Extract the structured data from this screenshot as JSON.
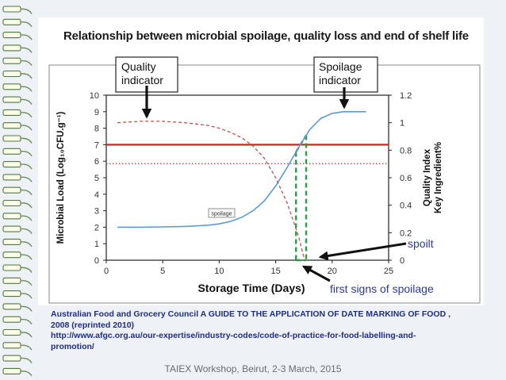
{
  "slide": {
    "footer": "TAIEX Workshop, Beirut, 2-3 March, 2015",
    "citation": {
      "line1": "Australian Food and Grocery Council A GUIDE TO THE APPLICATION OF DATE MARKING OF FOOD ,",
      "line2": "2008 (reprinted 2010)",
      "line3": "http://www.afgc.org.au/our-expertise/industry-codes/code-of-practice-for-food-labelling-and-",
      "line4": "promotion/"
    }
  },
  "chart_data": {
    "type": "line",
    "title": "Relationship between microbial spoilage, quality loss and end of shelf life",
    "xlabel": "Storage Time (Days)",
    "ylabel_left": "Microbial Load (Log₁₀CFU.g⁻¹)",
    "ylabel_right_1": "Quality Index",
    "ylabel_right_2": "Key Ingredient%",
    "xlim": [
      0,
      25
    ],
    "ylim_left": [
      0,
      10
    ],
    "ylim_right": [
      0,
      1.2
    ],
    "x_ticks": [
      "0",
      "5",
      "10",
      "15",
      "20",
      "25"
    ],
    "y_left_ticks": [
      "0",
      "1",
      "2",
      "3",
      "4",
      "5",
      "6",
      "7",
      "8",
      "9",
      "10"
    ],
    "y_right_ticks": [
      "0",
      "0.2",
      "0.4",
      "0.6",
      "0.8",
      "1",
      "1.2"
    ],
    "grid": false,
    "series": [
      {
        "name": "spoilage",
        "axis": "left",
        "style": "solid",
        "color": "#5a9bd5",
        "x": [
          1,
          3,
          5,
          7,
          9,
          10,
          11,
          12,
          13,
          14,
          15,
          16,
          17,
          18,
          19,
          20,
          21,
          22,
          23
        ],
        "y": [
          2.0,
          2.0,
          2.02,
          2.05,
          2.12,
          2.2,
          2.35,
          2.6,
          3.0,
          3.6,
          4.5,
          5.6,
          6.8,
          7.9,
          8.6,
          8.9,
          9.0,
          9.0,
          9.0
        ]
      },
      {
        "axis": "right",
        "style": "dashed",
        "color": "#c0504d",
        "x": [
          1,
          3,
          5,
          7,
          9,
          10,
          11,
          12,
          13,
          14,
          15,
          16,
          17,
          17.5
        ],
        "y": [
          1.0,
          1.01,
          1.01,
          1.0,
          0.98,
          0.96,
          0.93,
          0.89,
          0.83,
          0.74,
          0.6,
          0.42,
          0.18,
          0.02
        ]
      }
    ],
    "reference_lines": [
      {
        "axis": "left",
        "y": 7,
        "style": "solid",
        "color": "#e0201e"
      },
      {
        "axis": "left",
        "y": 5.85,
        "style": "dotted",
        "color": "#c0504d"
      }
    ],
    "marker_lines": [
      {
        "x": 16.8,
        "style": "dashed",
        "color": "#2e9b47"
      },
      {
        "x": 17.7,
        "style": "dashed",
        "color": "#2e9b47"
      }
    ],
    "annotations": {
      "quality_indicator": "Quality\nindicator",
      "spoilage_indicator": "Spoilage\nindicator",
      "spoilt": "spoilt",
      "first_signs": "first signs of  spoilage",
      "curve_label": "spoilage"
    }
  }
}
